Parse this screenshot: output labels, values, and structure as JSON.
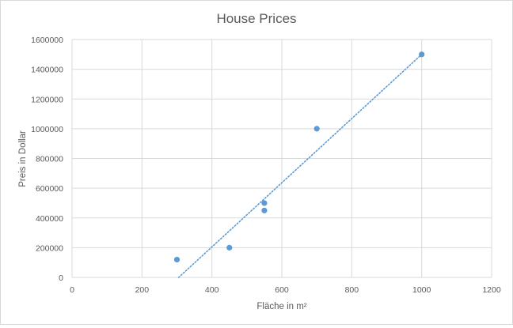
{
  "chart_data": {
    "type": "scatter",
    "title": "House Prices",
    "xlabel": "Fläche in m²",
    "ylabel": "Preis in Dollar",
    "xlim": [
      0,
      1200
    ],
    "ylim": [
      0,
      1600000
    ],
    "x_ticks": [
      0,
      200,
      400,
      600,
      800,
      1000,
      1200
    ],
    "y_ticks": [
      0,
      200000,
      400000,
      600000,
      800000,
      1000000,
      1200000,
      1400000,
      1600000
    ],
    "grid": true,
    "legend": "none",
    "series": [
      {
        "color": "#5b9bd5",
        "points": [
          {
            "x": 300,
            "y": 120000
          },
          {
            "x": 450,
            "y": 200000
          },
          {
            "x": 550,
            "y": 450000
          },
          {
            "x": 550,
            "y": 500000
          },
          {
            "x": 700,
            "y": 1000000
          },
          {
            "x": 1000,
            "y": 1500000
          }
        ]
      }
    ],
    "trendline": {
      "type": "linear",
      "style": "dotted",
      "color": "#5b9bd5",
      "points": [
        {
          "x": 305,
          "y": 0
        },
        {
          "x": 1000,
          "y": 1500000
        }
      ]
    }
  }
}
